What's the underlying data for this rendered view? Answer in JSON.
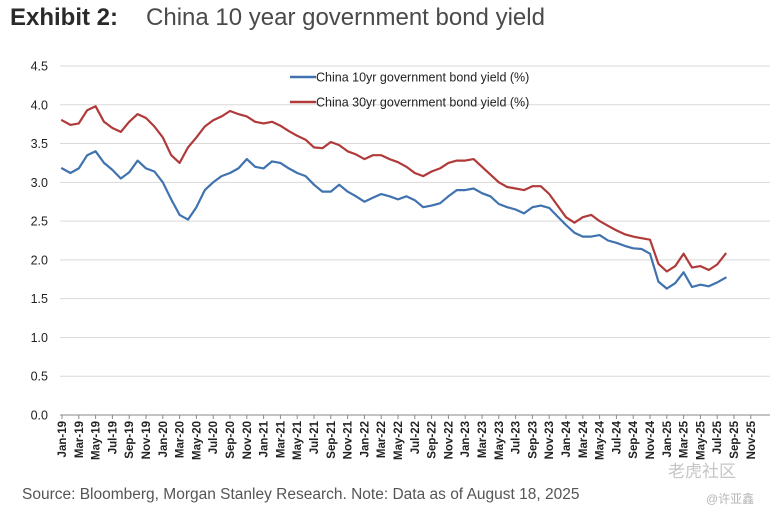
{
  "header": {
    "exhibit_label": "Exhibit 2:",
    "exhibit_title": "China 10 year government bond yield"
  },
  "footer": {
    "source": "Source: Bloomberg, Morgan Stanley Research. Note: Data as of August 18, 2025"
  },
  "watermark": {
    "brand": "老虎社区",
    "author": "@许亚鑫"
  },
  "colors": {
    "series_10y": "#3F72AF",
    "series_30y": "#B03A3A",
    "gridline": "#D9D9D9",
    "axis": "#888888"
  },
  "chart_data": {
    "type": "line",
    "title": "China 10 year government bond yield",
    "xlabel": "",
    "ylabel": "",
    "ylim": [
      0,
      4.5
    ],
    "yticks": [
      0.0,
      0.5,
      1.0,
      1.5,
      2.0,
      2.5,
      3.0,
      3.5,
      4.0,
      4.5
    ],
    "grid": true,
    "legend_position": "top-center",
    "x_categories": [
      "Jan-19",
      "Mar-19",
      "May-19",
      "Jul-19",
      "Sep-19",
      "Nov-19",
      "Jan-20",
      "Mar-20",
      "May-20",
      "Jul-20",
      "Sep-20",
      "Nov-20",
      "Jan-21",
      "Mar-21",
      "May-21",
      "Jul-21",
      "Sep-21",
      "Nov-21",
      "Jan-22",
      "Mar-22",
      "May-22",
      "Jul-22",
      "Sep-22",
      "Nov-22",
      "Jan-23",
      "Mar-23",
      "May-23",
      "Jul-23",
      "Sep-23",
      "Nov-23",
      "Jan-24",
      "Mar-24",
      "May-24",
      "Jul-24",
      "Sep-24",
      "Nov-24",
      "Jan-25",
      "Mar-25",
      "May-25",
      "Jul-25",
      "Sep-25",
      "Nov-25"
    ],
    "series": [
      {
        "name": "China 10yr government bond yield (%)",
        "color": "#3F72AF",
        "x": [
          "2019-01",
          "2019-02",
          "2019-03",
          "2019-04",
          "2019-05",
          "2019-06",
          "2019-07",
          "2019-08",
          "2019-09",
          "2019-10",
          "2019-11",
          "2019-12",
          "2020-01",
          "2020-02",
          "2020-03",
          "2020-04",
          "2020-05",
          "2020-06",
          "2020-07",
          "2020-08",
          "2020-09",
          "2020-10",
          "2020-11",
          "2020-12",
          "2021-01",
          "2021-02",
          "2021-03",
          "2021-04",
          "2021-05",
          "2021-06",
          "2021-07",
          "2021-08",
          "2021-09",
          "2021-10",
          "2021-11",
          "2021-12",
          "2022-01",
          "2022-02",
          "2022-03",
          "2022-04",
          "2022-05",
          "2022-06",
          "2022-07",
          "2022-08",
          "2022-09",
          "2022-10",
          "2022-11",
          "2022-12",
          "2023-01",
          "2023-02",
          "2023-03",
          "2023-04",
          "2023-05",
          "2023-06",
          "2023-07",
          "2023-08",
          "2023-09",
          "2023-10",
          "2023-11",
          "2023-12",
          "2024-01",
          "2024-02",
          "2024-03",
          "2024-04",
          "2024-05",
          "2024-06",
          "2024-07",
          "2024-08",
          "2024-09",
          "2024-10",
          "2024-11",
          "2024-12",
          "2025-01",
          "2025-02",
          "2025-03",
          "2025-04",
          "2025-05",
          "2025-06",
          "2025-07",
          "2025-08"
        ],
        "values": [
          3.18,
          3.12,
          3.18,
          3.35,
          3.4,
          3.25,
          3.16,
          3.05,
          3.13,
          3.28,
          3.18,
          3.14,
          3.0,
          2.78,
          2.58,
          2.52,
          2.68,
          2.9,
          3.0,
          3.08,
          3.12,
          3.18,
          3.3,
          3.2,
          3.18,
          3.27,
          3.25,
          3.18,
          3.12,
          3.08,
          2.97,
          2.88,
          2.88,
          2.97,
          2.88,
          2.82,
          2.75,
          2.8,
          2.85,
          2.82,
          2.78,
          2.82,
          2.77,
          2.68,
          2.7,
          2.73,
          2.82,
          2.9,
          2.9,
          2.92,
          2.86,
          2.82,
          2.72,
          2.68,
          2.65,
          2.6,
          2.68,
          2.7,
          2.67,
          2.56,
          2.45,
          2.35,
          2.3,
          2.3,
          2.32,
          2.25,
          2.22,
          2.18,
          2.15,
          2.14,
          2.08,
          1.72,
          1.63,
          1.7,
          1.84,
          1.65,
          1.68,
          1.66,
          1.71,
          1.77
        ]
      },
      {
        "name": "China 30yr government bond yield (%)",
        "color": "#B03A3A",
        "x": [
          "2019-01",
          "2019-02",
          "2019-03",
          "2019-04",
          "2019-05",
          "2019-06",
          "2019-07",
          "2019-08",
          "2019-09",
          "2019-10",
          "2019-11",
          "2019-12",
          "2020-01",
          "2020-02",
          "2020-03",
          "2020-04",
          "2020-05",
          "2020-06",
          "2020-07",
          "2020-08",
          "2020-09",
          "2020-10",
          "2020-11",
          "2020-12",
          "2021-01",
          "2021-02",
          "2021-03",
          "2021-04",
          "2021-05",
          "2021-06",
          "2021-07",
          "2021-08",
          "2021-09",
          "2021-10",
          "2021-11",
          "2021-12",
          "2022-01",
          "2022-02",
          "2022-03",
          "2022-04",
          "2022-05",
          "2022-06",
          "2022-07",
          "2022-08",
          "2022-09",
          "2022-10",
          "2022-11",
          "2022-12",
          "2023-01",
          "2023-02",
          "2023-03",
          "2023-04",
          "2023-05",
          "2023-06",
          "2023-07",
          "2023-08",
          "2023-09",
          "2023-10",
          "2023-11",
          "2023-12",
          "2024-01",
          "2024-02",
          "2024-03",
          "2024-04",
          "2024-05",
          "2024-06",
          "2024-07",
          "2024-08",
          "2024-09",
          "2024-10",
          "2024-11",
          "2024-12",
          "2025-01",
          "2025-02",
          "2025-03",
          "2025-04",
          "2025-05",
          "2025-06",
          "2025-07",
          "2025-08"
        ],
        "values": [
          3.8,
          3.74,
          3.76,
          3.93,
          3.98,
          3.78,
          3.7,
          3.65,
          3.78,
          3.88,
          3.83,
          3.72,
          3.58,
          3.35,
          3.25,
          3.45,
          3.58,
          3.72,
          3.8,
          3.85,
          3.92,
          3.88,
          3.85,
          3.78,
          3.76,
          3.78,
          3.73,
          3.66,
          3.6,
          3.55,
          3.45,
          3.44,
          3.52,
          3.48,
          3.4,
          3.36,
          3.3,
          3.35,
          3.35,
          3.3,
          3.26,
          3.2,
          3.12,
          3.08,
          3.14,
          3.18,
          3.25,
          3.28,
          3.28,
          3.3,
          3.2,
          3.1,
          3.0,
          2.94,
          2.92,
          2.9,
          2.95,
          2.95,
          2.85,
          2.7,
          2.55,
          2.48,
          2.55,
          2.58,
          2.5,
          2.44,
          2.38,
          2.33,
          2.3,
          2.28,
          2.26,
          1.95,
          1.85,
          1.92,
          2.08,
          1.9,
          1.92,
          1.87,
          1.94,
          2.08
        ]
      }
    ]
  }
}
